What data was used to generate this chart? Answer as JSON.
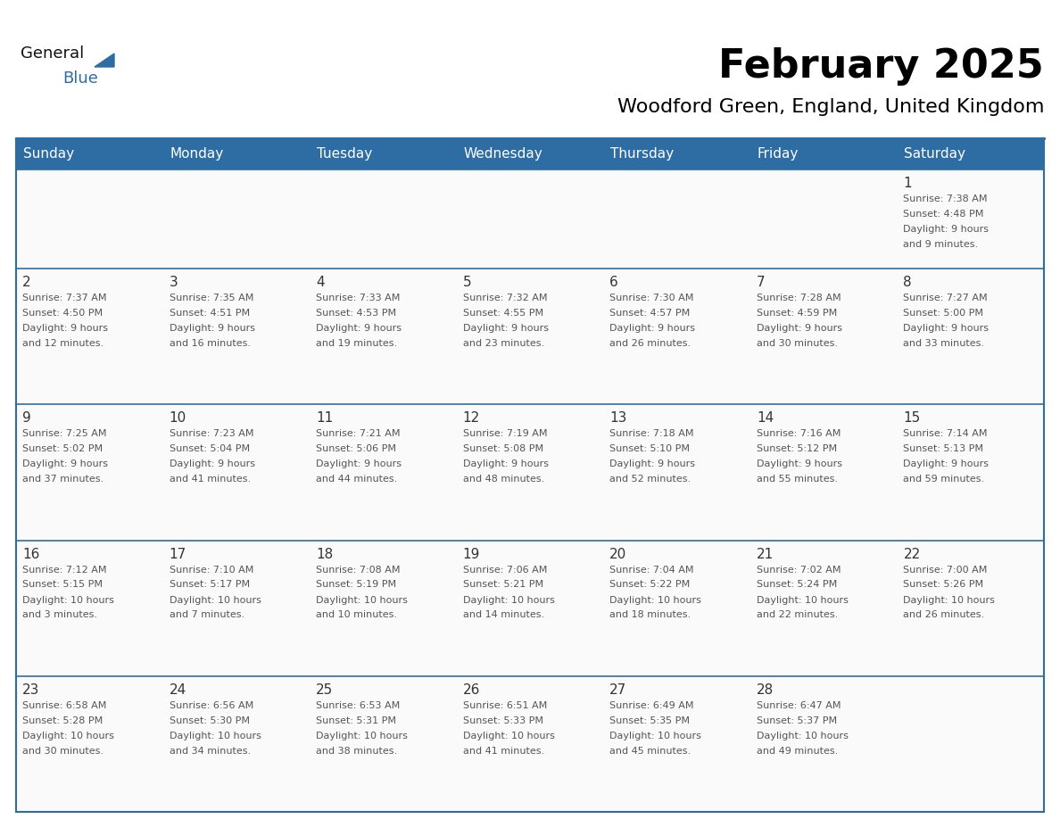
{
  "title": "February 2025",
  "subtitle": "Woodford Green, England, United Kingdom",
  "header_color": "#2E6DA4",
  "header_text_color": "#FFFFFF",
  "border_color": "#2E6DA4",
  "day_number_color": "#333333",
  "text_color": "#555555",
  "days_of_week": [
    "Sunday",
    "Monday",
    "Tuesday",
    "Wednesday",
    "Thursday",
    "Friday",
    "Saturday"
  ],
  "calendar_data": [
    [
      null,
      null,
      null,
      null,
      null,
      null,
      {
        "day": 1,
        "sunrise": "7:38 AM",
        "sunset": "4:48 PM",
        "daylight": "9 hours",
        "daylight2": "and 9 minutes."
      }
    ],
    [
      {
        "day": 2,
        "sunrise": "7:37 AM",
        "sunset": "4:50 PM",
        "daylight": "9 hours",
        "daylight2": "and 12 minutes."
      },
      {
        "day": 3,
        "sunrise": "7:35 AM",
        "sunset": "4:51 PM",
        "daylight": "9 hours",
        "daylight2": "and 16 minutes."
      },
      {
        "day": 4,
        "sunrise": "7:33 AM",
        "sunset": "4:53 PM",
        "daylight": "9 hours",
        "daylight2": "and 19 minutes."
      },
      {
        "day": 5,
        "sunrise": "7:32 AM",
        "sunset": "4:55 PM",
        "daylight": "9 hours",
        "daylight2": "and 23 minutes."
      },
      {
        "day": 6,
        "sunrise": "7:30 AM",
        "sunset": "4:57 PM",
        "daylight": "9 hours",
        "daylight2": "and 26 minutes."
      },
      {
        "day": 7,
        "sunrise": "7:28 AM",
        "sunset": "4:59 PM",
        "daylight": "9 hours",
        "daylight2": "and 30 minutes."
      },
      {
        "day": 8,
        "sunrise": "7:27 AM",
        "sunset": "5:00 PM",
        "daylight": "9 hours",
        "daylight2": "and 33 minutes."
      }
    ],
    [
      {
        "day": 9,
        "sunrise": "7:25 AM",
        "sunset": "5:02 PM",
        "daylight": "9 hours",
        "daylight2": "and 37 minutes."
      },
      {
        "day": 10,
        "sunrise": "7:23 AM",
        "sunset": "5:04 PM",
        "daylight": "9 hours",
        "daylight2": "and 41 minutes."
      },
      {
        "day": 11,
        "sunrise": "7:21 AM",
        "sunset": "5:06 PM",
        "daylight": "9 hours",
        "daylight2": "and 44 minutes."
      },
      {
        "day": 12,
        "sunrise": "7:19 AM",
        "sunset": "5:08 PM",
        "daylight": "9 hours",
        "daylight2": "and 48 minutes."
      },
      {
        "day": 13,
        "sunrise": "7:18 AM",
        "sunset": "5:10 PM",
        "daylight": "9 hours",
        "daylight2": "and 52 minutes."
      },
      {
        "day": 14,
        "sunrise": "7:16 AM",
        "sunset": "5:12 PM",
        "daylight": "9 hours",
        "daylight2": "and 55 minutes."
      },
      {
        "day": 15,
        "sunrise": "7:14 AM",
        "sunset": "5:13 PM",
        "daylight": "9 hours",
        "daylight2": "and 59 minutes."
      }
    ],
    [
      {
        "day": 16,
        "sunrise": "7:12 AM",
        "sunset": "5:15 PM",
        "daylight": "10 hours",
        "daylight2": "and 3 minutes."
      },
      {
        "day": 17,
        "sunrise": "7:10 AM",
        "sunset": "5:17 PM",
        "daylight": "10 hours",
        "daylight2": "and 7 minutes."
      },
      {
        "day": 18,
        "sunrise": "7:08 AM",
        "sunset": "5:19 PM",
        "daylight": "10 hours",
        "daylight2": "and 10 minutes."
      },
      {
        "day": 19,
        "sunrise": "7:06 AM",
        "sunset": "5:21 PM",
        "daylight": "10 hours",
        "daylight2": "and 14 minutes."
      },
      {
        "day": 20,
        "sunrise": "7:04 AM",
        "sunset": "5:22 PM",
        "daylight": "10 hours",
        "daylight2": "and 18 minutes."
      },
      {
        "day": 21,
        "sunrise": "7:02 AM",
        "sunset": "5:24 PM",
        "daylight": "10 hours",
        "daylight2": "and 22 minutes."
      },
      {
        "day": 22,
        "sunrise": "7:00 AM",
        "sunset": "5:26 PM",
        "daylight": "10 hours",
        "daylight2": "and 26 minutes."
      }
    ],
    [
      {
        "day": 23,
        "sunrise": "6:58 AM",
        "sunset": "5:28 PM",
        "daylight": "10 hours",
        "daylight2": "and 30 minutes."
      },
      {
        "day": 24,
        "sunrise": "6:56 AM",
        "sunset": "5:30 PM",
        "daylight": "10 hours",
        "daylight2": "and 34 minutes."
      },
      {
        "day": 25,
        "sunrise": "6:53 AM",
        "sunset": "5:31 PM",
        "daylight": "10 hours",
        "daylight2": "and 38 minutes."
      },
      {
        "day": 26,
        "sunrise": "6:51 AM",
        "sunset": "5:33 PM",
        "daylight": "10 hours",
        "daylight2": "and 41 minutes."
      },
      {
        "day": 27,
        "sunrise": "6:49 AM",
        "sunset": "5:35 PM",
        "daylight": "10 hours",
        "daylight2": "and 45 minutes."
      },
      {
        "day": 28,
        "sunrise": "6:47 AM",
        "sunset": "5:37 PM",
        "daylight": "10 hours",
        "daylight2": "and 49 minutes."
      },
      null
    ]
  ]
}
